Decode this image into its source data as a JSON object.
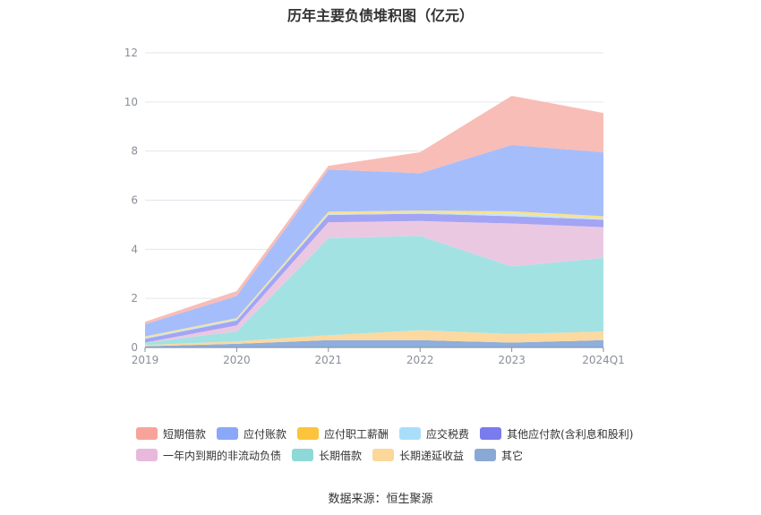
{
  "title": "历年主要负债堆积图（亿元）",
  "source": "数据来源：恒生聚源",
  "chart_data": {
    "type": "area",
    "stacked": true,
    "title": "历年主要负债堆积图（亿元）",
    "categories": [
      "2019",
      "2020",
      "2021",
      "2022",
      "2023",
      "2024Q1"
    ],
    "ylim": [
      0,
      12
    ],
    "yticks": [
      "0",
      "2",
      "4",
      "6",
      "8",
      "10",
      "12"
    ],
    "grid": true,
    "legend_position": "bottom",
    "series": [
      {
        "name": "其它",
        "color": "#8eaedd",
        "values": [
          0.05,
          0.15,
          0.3,
          0.3,
          0.2,
          0.3
        ]
      },
      {
        "name": "长期递延收益",
        "color": "#fcd9a0",
        "values": [
          0.05,
          0.1,
          0.2,
          0.4,
          0.35,
          0.35
        ]
      },
      {
        "name": "长期借款",
        "color": "#a3e2e3",
        "values": [
          0.1,
          0.4,
          3.95,
          3.85,
          2.75,
          3.0
        ]
      },
      {
        "name": "一年内到期的非流动负债",
        "color": "#ebc8e2",
        "values": [
          0.0,
          0.25,
          0.65,
          0.6,
          1.75,
          1.25
        ]
      },
      {
        "name": "其他应付款(含利息和股利)",
        "color": "#a3a4f4",
        "values": [
          0.15,
          0.2,
          0.3,
          0.3,
          0.3,
          0.3
        ]
      },
      {
        "name": "应交税费",
        "color": "#c3e6f5",
        "values": [
          0.05,
          0.05,
          0.05,
          0.05,
          0.1,
          0.05
        ]
      },
      {
        "name": "应付职工薪酬",
        "color": "#fbe08a",
        "values": [
          0.05,
          0.05,
          0.08,
          0.08,
          0.1,
          0.1
        ]
      },
      {
        "name": "应付账款",
        "color": "#a6bdfc",
        "values": [
          0.5,
          0.9,
          1.72,
          1.52,
          2.7,
          2.6
        ]
      },
      {
        "name": "短期借款",
        "color": "#f8bdb6",
        "values": [
          0.1,
          0.2,
          0.15,
          0.85,
          2.0,
          1.6
        ]
      }
    ]
  },
  "legend": [
    [
      {
        "name": "短期借款",
        "color": "#f8a39a"
      },
      {
        "name": "应付账款",
        "color": "#8aa8f8"
      },
      {
        "name": "应付职工薪酬",
        "color": "#fbc43c"
      },
      {
        "name": "应交税费",
        "color": "#a9defa"
      },
      {
        "name": "其他应付款(含利息和股利)",
        "color": "#7a7bee"
      }
    ],
    [
      {
        "name": "一年内到期的非流动负债",
        "color": "#e8b9dc"
      },
      {
        "name": "长期借款",
        "color": "#8dd9d8"
      },
      {
        "name": "长期递延收益",
        "color": "#fcd79a"
      },
      {
        "name": "其它",
        "color": "#8aa8d6"
      }
    ]
  ]
}
